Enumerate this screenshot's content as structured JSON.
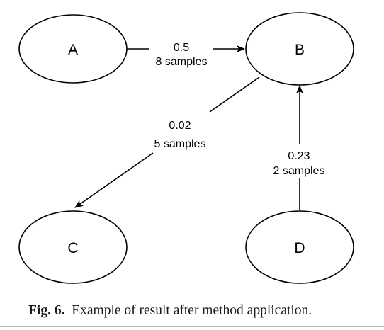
{
  "diagram": {
    "nodes": [
      {
        "id": "A",
        "label": "A"
      },
      {
        "id": "B",
        "label": "B"
      },
      {
        "id": "C",
        "label": "C"
      },
      {
        "id": "D",
        "label": "D"
      }
    ],
    "edges": [
      {
        "from": "A",
        "to": "B",
        "weight": "0.5",
        "samples": "8 samples"
      },
      {
        "from": "B",
        "to": "C",
        "weight": "0.02",
        "samples": "5 samples"
      },
      {
        "from": "D",
        "to": "B",
        "weight": "0.23",
        "samples": "2 samples"
      }
    ]
  },
  "caption": {
    "figure_number": "Fig. 6.",
    "text": "Example of result after method application."
  }
}
